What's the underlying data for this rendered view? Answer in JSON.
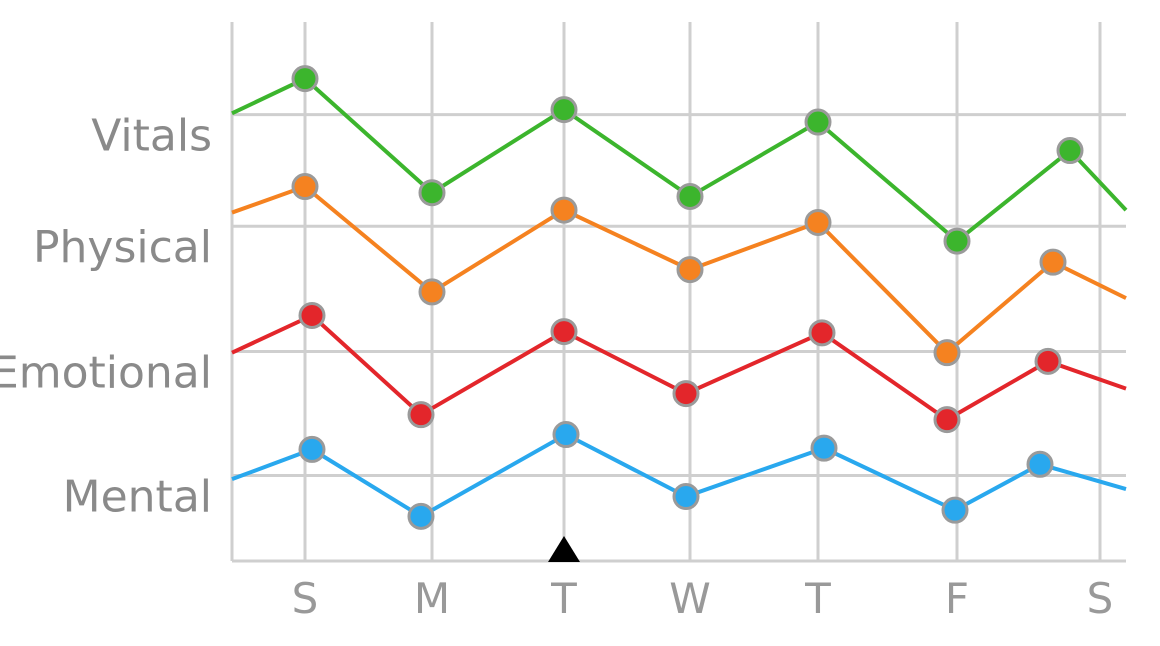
{
  "chart_data": {
    "type": "line",
    "title": "",
    "xlabel": "",
    "ylabel": "",
    "categories": [
      "S",
      "M",
      "T",
      "W",
      "T",
      "F",
      "S"
    ],
    "ylevels": [
      "Vitals",
      "Physical",
      "Emotional",
      "Mental"
    ],
    "ylim": [
      0,
      4
    ],
    "grid": true,
    "marker": "T",
    "series": [
      {
        "name": "Vitals",
        "color": "#3cb52d",
        "values": [
          3.89,
          2.97,
          3.64,
          2.94,
          3.54,
          2.58,
          3.31
        ],
        "start": 3.61,
        "end": 2.83
      },
      {
        "name": "Physical",
        "color": "#f58220",
        "values": [
          3.02,
          2.17,
          2.83,
          2.35,
          2.73,
          1.68,
          2.41
        ],
        "start": 2.81,
        "end": 2.12
      },
      {
        "name": "Emotional",
        "color": "#e3262b",
        "values": [
          1.98,
          1.18,
          1.85,
          1.35,
          1.84,
          1.14,
          1.61
        ],
        "start": 1.68,
        "end": 1.39
      },
      {
        "name": "Mental",
        "color": "#29a8ee",
        "values": [
          0.9,
          0.36,
          1.02,
          0.52,
          0.91,
          0.41,
          0.78
        ],
        "start": 0.66,
        "end": 0.58
      }
    ]
  }
}
